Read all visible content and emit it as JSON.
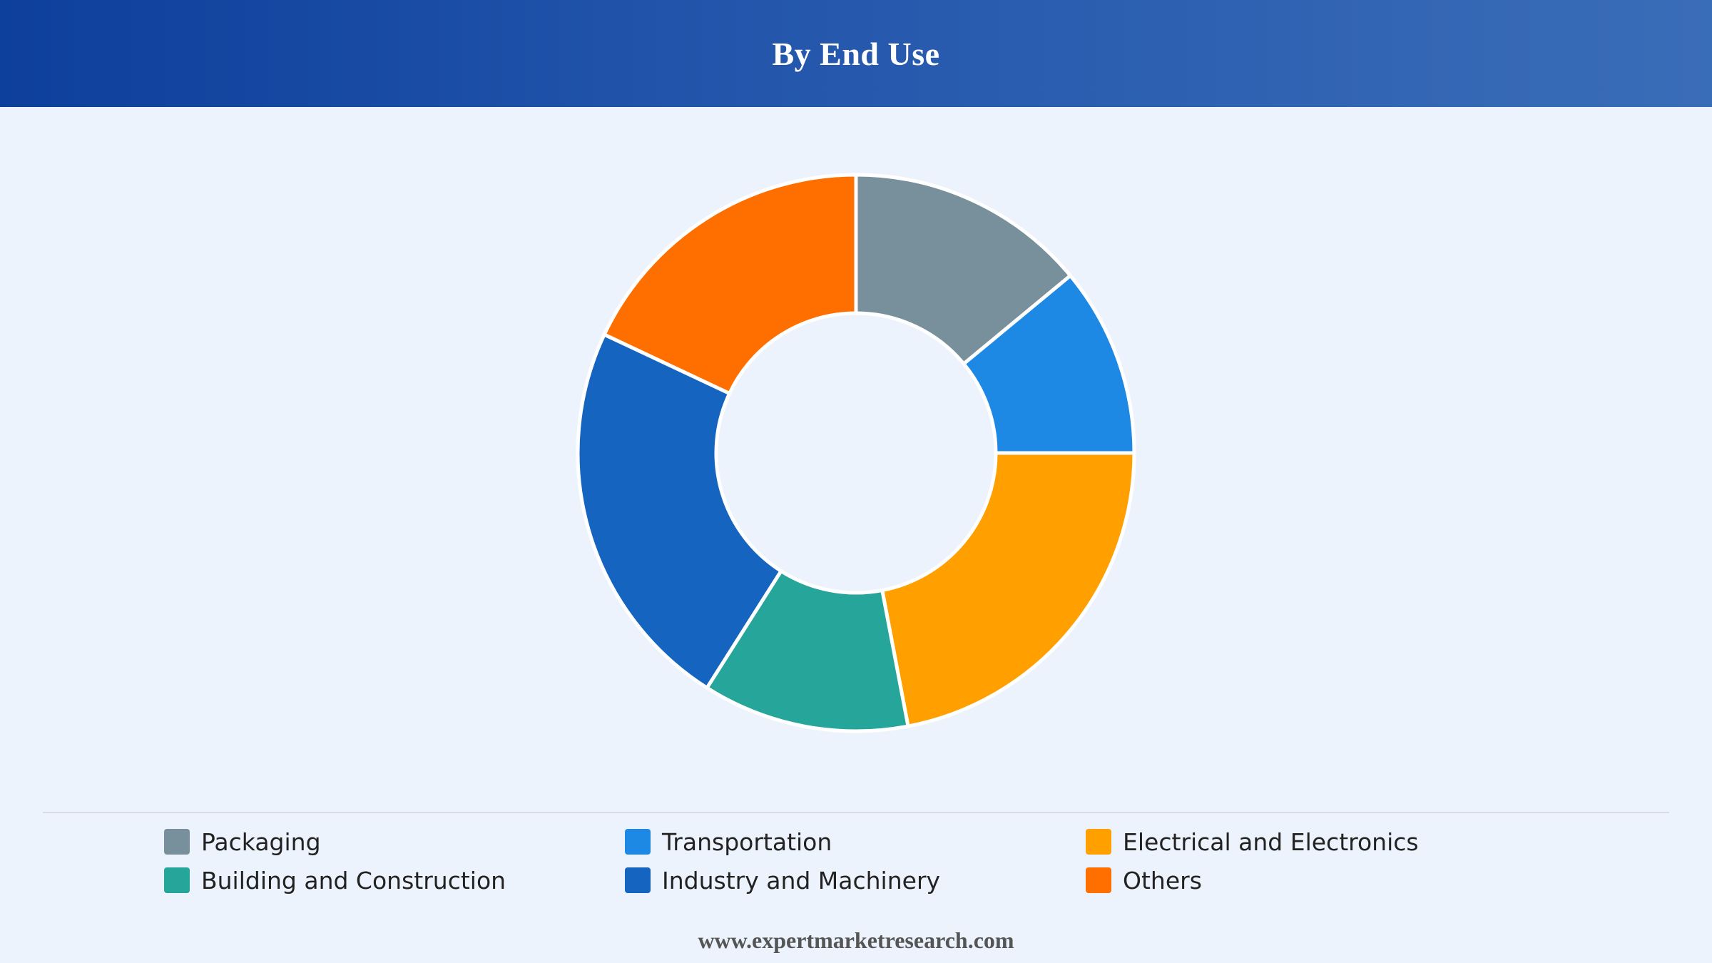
{
  "header": {
    "title": "By End Use"
  },
  "footer": {
    "website": "www.expertmarketresearch.com"
  },
  "chart_data": {
    "type": "pie",
    "style": "donut",
    "title": "By End Use",
    "legend_position": "bottom",
    "categories": [
      "Packaging",
      "Transportation",
      "Electrical and Electronics",
      "Building and Construction",
      "Industry and Machinery",
      "Others"
    ],
    "values": [
      14,
      11,
      22,
      12,
      23,
      18
    ],
    "colors": [
      "#78909c",
      "#1e88e5",
      "#ffa000",
      "#26a69a",
      "#1565c0",
      "#ff6f00"
    ],
    "slice_order": [
      "Packaging",
      "Transportation",
      "Electrical and Electronics",
      "Building and Construction",
      "Industry and Machinery",
      "Others"
    ]
  }
}
